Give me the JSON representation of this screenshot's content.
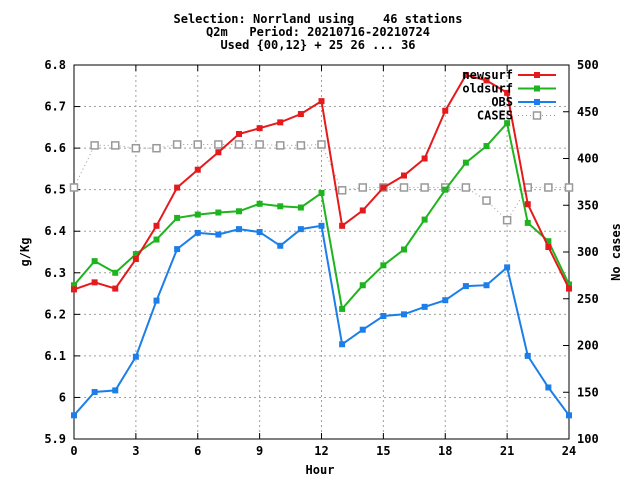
{
  "chart_data": {
    "type": "line",
    "title_lines": [
      "Selection: Norrland using    46 stations",
      "Q2m   Period: 20210716-20210724",
      "Used {00,12} + 25 26 ... 36"
    ],
    "xlabel": "Hour",
    "ylabel": "g/Kg",
    "y2label": "No cases",
    "xlim": [
      0,
      24
    ],
    "ylim": [
      5.9,
      6.8
    ],
    "y2lim": [
      100,
      500
    ],
    "xticks": [
      "0",
      "3",
      "6",
      "9",
      "12",
      "15",
      "18",
      "21",
      "24"
    ],
    "yticks": [
      "5.9",
      "6",
      "6.1",
      "6.2",
      "6.3",
      "6.4",
      "6.5",
      "6.6",
      "6.7",
      "6.8"
    ],
    "y2ticks": [
      "100",
      "150",
      "200",
      "250",
      "300",
      "350",
      "400",
      "450",
      "500"
    ],
    "grid": true,
    "legend_position": "top-right",
    "x": [
      0,
      1,
      2,
      3,
      4,
      5,
      6,
      7,
      8,
      9,
      10,
      11,
      12,
      13,
      14,
      15,
      16,
      17,
      18,
      19,
      20,
      21,
      22,
      23,
      24
    ],
    "series": [
      {
        "name": "newsurf",
        "color": "#e41a1c",
        "marker": "square",
        "axis": "y",
        "values": [
          6.26,
          6.277,
          6.262,
          6.333,
          6.413,
          6.505,
          6.548,
          6.59,
          6.634,
          6.648,
          6.662,
          6.682,
          6.713,
          6.413,
          6.45,
          6.505,
          6.534,
          6.575,
          6.69,
          6.776,
          6.763,
          6.733,
          6.465,
          6.362,
          6.262
        ]
      },
      {
        "name": "oldsurf",
        "color": "#1fb41f",
        "marker": "square",
        "axis": "y",
        "values": [
          6.27,
          6.328,
          6.3,
          6.345,
          6.38,
          6.432,
          6.44,
          6.445,
          6.448,
          6.466,
          6.46,
          6.457,
          6.492,
          6.213,
          6.27,
          6.318,
          6.356,
          6.428,
          6.5,
          6.565,
          6.605,
          6.66,
          6.42,
          6.376,
          6.272
        ]
      },
      {
        "name": "OBS",
        "color": "#1c7ee8",
        "marker": "square",
        "axis": "y",
        "values": [
          5.957,
          6.013,
          6.017,
          6.098,
          6.233,
          6.357,
          6.396,
          6.392,
          6.405,
          6.398,
          6.365,
          6.405,
          6.413,
          6.128,
          6.163,
          6.196,
          6.2,
          6.218,
          6.234,
          6.268,
          6.27,
          6.313,
          6.1,
          6.024,
          5.957
        ]
      },
      {
        "name": "CASES",
        "color": "#999999",
        "marker": "open-square",
        "linestyle": "dotted",
        "axis": "y2",
        "values": [
          369,
          414,
          414,
          411,
          411,
          415,
          415,
          415,
          415,
          415,
          414,
          414,
          415,
          366,
          369,
          369,
          369,
          369,
          369,
          369,
          355,
          334,
          369,
          369,
          369
        ]
      }
    ]
  }
}
